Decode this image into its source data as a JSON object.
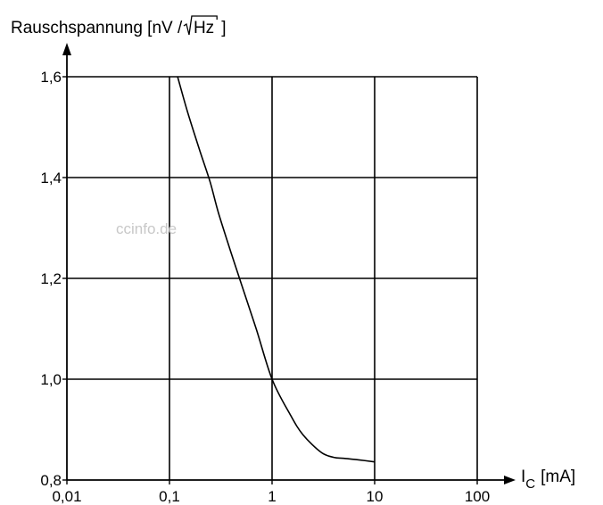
{
  "chart_data": {
    "type": "line",
    "ylabel": {
      "prefix": "Rauschspannung [nV / ",
      "sqrt_arg": "Hz",
      "suffix": "]"
    },
    "xlabel": {
      "symbol": "I",
      "subscript": "C",
      "unit": "[mA]"
    },
    "x_scale": "log",
    "xlim": [
      0.01,
      100
    ],
    "ylim": [
      0.8,
      1.6
    ],
    "grid": true,
    "x_ticks": [
      {
        "value": 0.01,
        "label": "0,01"
      },
      {
        "value": 0.1,
        "label": "0,1"
      },
      {
        "value": 1,
        "label": "1"
      },
      {
        "value": 10,
        "label": "10"
      },
      {
        "value": 100,
        "label": "100"
      }
    ],
    "y_ticks": [
      {
        "value": 0.8,
        "label": "0,8"
      },
      {
        "value": 1.0,
        "label": "1,0"
      },
      {
        "value": 1.2,
        "label": "1,2"
      },
      {
        "value": 1.4,
        "label": "1,4"
      },
      {
        "value": 1.6,
        "label": "1,6"
      }
    ],
    "series": [
      {
        "x": [
          0.12,
          0.15,
          0.2,
          0.25,
          0.3,
          0.4,
          0.5,
          0.7,
          1.0,
          1.5,
          2.0,
          3.0,
          4.0,
          5.0,
          7.0,
          10.0
        ],
        "y": [
          1.6,
          1.53,
          1.45,
          1.39,
          1.33,
          1.25,
          1.19,
          1.1,
          1.0,
          0.93,
          0.89,
          0.855,
          0.845,
          0.843,
          0.84,
          0.836
        ]
      }
    ],
    "watermark": "ccinfo.de"
  }
}
